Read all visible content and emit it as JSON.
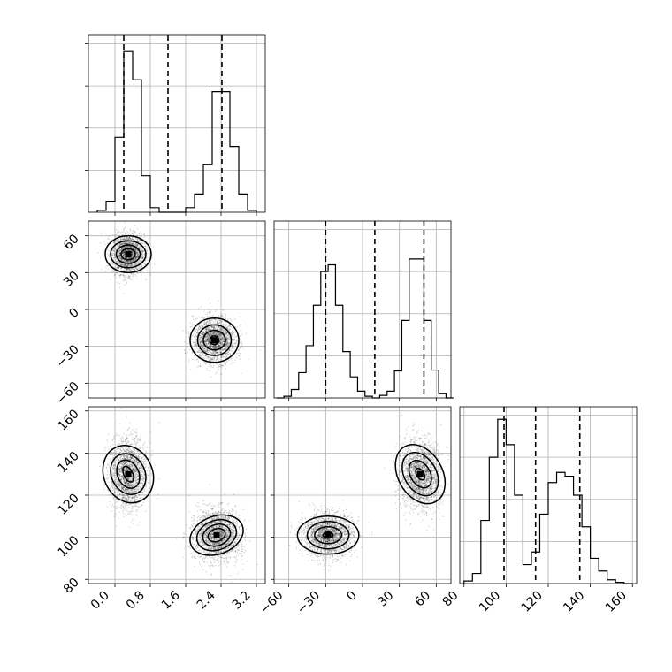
{
  "chart_data": {
    "type": "corner",
    "title": "",
    "grid": true,
    "parameters": [
      {
        "xlabel": "",
        "range": [
          -0.6,
          3.4
        ],
        "ticks": [
          0.0,
          0.8,
          1.6,
          2.4,
          3.2
        ],
        "tick_labels": [
          "0.0",
          "0.8",
          "1.6",
          "2.4",
          "3.2"
        ],
        "quantiles": [
          0.2,
          1.2,
          2.42
        ]
      },
      {
        "xlabel": "",
        "range": [
          -72,
          72
        ],
        "ticks": [
          -60,
          -30,
          0,
          30,
          60
        ],
        "tick_labels": [
          "−60",
          "−30",
          "0",
          "30",
          "60"
        ],
        "quantiles": [
          -30,
          10,
          50
        ]
      },
      {
        "xlabel": "",
        "range": [
          78,
          162
        ],
        "ticks": [
          80,
          100,
          120,
          140,
          160
        ],
        "tick_labels": [
          "80",
          "100",
          "120",
          "140",
          "160"
        ],
        "quantiles": [
          99,
          114,
          135
        ]
      }
    ],
    "histograms": [
      {
        "param": 0,
        "bin_edges": [
          -0.4,
          -0.2,
          0.0,
          0.2,
          0.4,
          0.6,
          0.8,
          1.0,
          1.2,
          1.4,
          1.6,
          1.8,
          2.0,
          2.2,
          2.4,
          2.6,
          2.8,
          3.0,
          3.2
        ],
        "counts": [
          2,
          12,
          82,
          176,
          145,
          40,
          5,
          0,
          0,
          0,
          5,
          20,
          52,
          132,
          132,
          72,
          20,
          2
        ]
      },
      {
        "param": 1,
        "bin_edges": [
          -70,
          -64,
          -58,
          -52,
          -46,
          -40,
          -34,
          -28,
          -22,
          -16,
          -10,
          -4,
          2,
          8,
          14,
          20,
          26,
          32,
          38,
          44,
          50,
          56,
          62,
          68,
          74
        ],
        "counts": [
          0,
          2,
          10,
          30,
          62,
          110,
          150,
          158,
          110,
          55,
          25,
          8,
          2,
          0,
          3,
          8,
          32,
          92,
          165,
          165,
          92,
          33,
          5,
          0
        ],
        "max_count": 210
      },
      {
        "param": 2,
        "bin_edges": [
          80,
          84,
          88,
          92,
          96,
          100,
          104,
          108,
          112,
          116,
          120,
          124,
          128,
          132,
          136,
          140,
          144,
          148,
          152,
          156,
          160
        ],
        "counts": [
          2,
          8,
          50,
          100,
          130,
          110,
          70,
          15,
          25,
          55,
          80,
          88,
          85,
          70,
          45,
          20,
          10,
          3,
          1,
          0
        ],
        "max_count": 140
      }
    ],
    "joint_panels": [
      {
        "x_param": 0,
        "y_param": 1,
        "modes": [
          {
            "center": [
              0.3,
              45
            ],
            "sd": [
              0.18,
              8
            ],
            "points": 2200,
            "levels": [
              [
                0.16,
                4.5
              ],
              [
                0.27,
                7.5
              ],
              [
                0.4,
                11
              ],
              [
                0.52,
                15
              ]
            ]
          },
          {
            "center": [
              2.25,
              -25
            ],
            "sd": [
              0.24,
              9
            ],
            "points": 2200,
            "levels": [
              [
                0.1,
                3.5
              ],
              [
                0.25,
                8
              ],
              [
                0.38,
                12.5
              ],
              [
                0.55,
                18
              ]
            ]
          }
        ]
      },
      {
        "x_param": 0,
        "y_param": 2,
        "modes": [
          {
            "center": [
              0.3,
              130
            ],
            "sd": [
              0.2,
              8
            ],
            "points": 2200,
            "rotation_deg": -25,
            "levels": [
              [
                0.1,
                4
              ],
              [
                0.24,
                7
              ],
              [
                0.38,
                10
              ],
              [
                0.55,
                14
              ]
            ]
          },
          {
            "center": [
              2.3,
              101
            ],
            "sd": [
              0.25,
              6
            ],
            "points": 2200,
            "rotation_deg": -20,
            "levels": [
              [
                0.2,
                3
              ],
              [
                0.32,
                5
              ],
              [
                0.46,
                7
              ],
              [
                0.62,
                9
              ]
            ]
          }
        ]
      },
      {
        "x_param": 1,
        "y_param": 2,
        "modes": [
          {
            "center": [
              -28,
              101
            ],
            "sd": [
              10,
              5
            ],
            "points": 2200,
            "levels": [
              [
                4,
                1.5
              ],
              [
                11,
                4
              ],
              [
                17,
                6.5
              ],
              [
                25,
                9
              ]
            ]
          },
          {
            "center": [
              47,
              130
            ],
            "sd": [
              8,
              8
            ],
            "points": 2200,
            "rotation_deg": -30,
            "levels": [
              [
                3,
                3
              ],
              [
                8,
                7
              ],
              [
                13,
                11
              ],
              [
                18,
                15
              ]
            ]
          }
        ]
      }
    ]
  }
}
